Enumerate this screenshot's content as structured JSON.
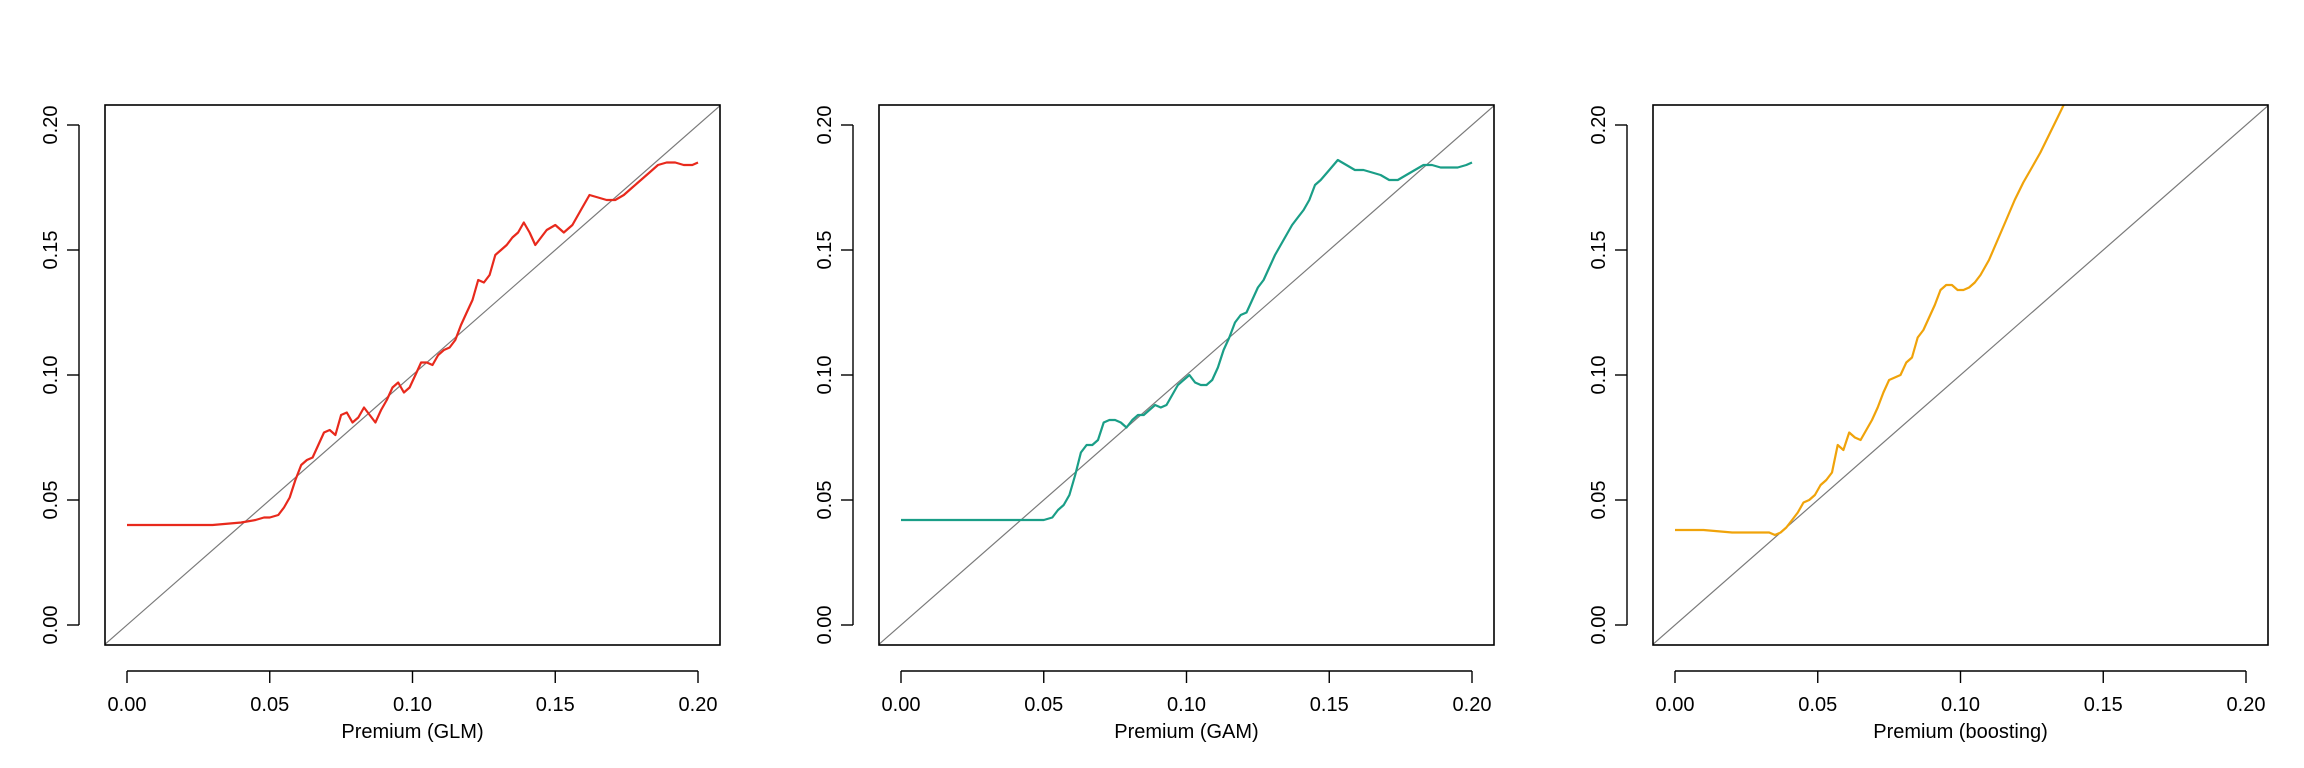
{
  "chart_data": [
    {
      "type": "line",
      "xlabel": "Premium (GLM)",
      "ylabel": "",
      "xlim": [
        0.0,
        0.2
      ],
      "ylim": [
        0.0,
        0.2
      ],
      "xticks": [
        "0.00",
        "0.05",
        "0.10",
        "0.15",
        "0.20"
      ],
      "yticks": [
        "0.00",
        "0.05",
        "0.10",
        "0.15",
        "0.20"
      ],
      "grid": false,
      "reference_line": "y = x",
      "series": [
        {
          "color": "#e8291c",
          "x": [
            0.0,
            0.01,
            0.02,
            0.03,
            0.04,
            0.045,
            0.048,
            0.05,
            0.053,
            0.055,
            0.057,
            0.059,
            0.061,
            0.063,
            0.065,
            0.067,
            0.069,
            0.071,
            0.073,
            0.075,
            0.077,
            0.079,
            0.081,
            0.083,
            0.085,
            0.087,
            0.089,
            0.091,
            0.093,
            0.095,
            0.097,
            0.099,
            0.101,
            0.103,
            0.105,
            0.107,
            0.109,
            0.111,
            0.113,
            0.115,
            0.117,
            0.119,
            0.121,
            0.123,
            0.125,
            0.127,
            0.129,
            0.131,
            0.133,
            0.135,
            0.137,
            0.139,
            0.141,
            0.143,
            0.145,
            0.147,
            0.15,
            0.153,
            0.156,
            0.159,
            0.162,
            0.165,
            0.168,
            0.171,
            0.174,
            0.177,
            0.18,
            0.183,
            0.186,
            0.189,
            0.192,
            0.195,
            0.198,
            0.2
          ],
          "y": [
            0.04,
            0.04,
            0.04,
            0.04,
            0.041,
            0.042,
            0.043,
            0.043,
            0.044,
            0.047,
            0.051,
            0.058,
            0.064,
            0.066,
            0.067,
            0.072,
            0.077,
            0.078,
            0.076,
            0.084,
            0.085,
            0.081,
            0.083,
            0.087,
            0.084,
            0.081,
            0.086,
            0.09,
            0.095,
            0.097,
            0.093,
            0.095,
            0.1,
            0.105,
            0.105,
            0.104,
            0.108,
            0.11,
            0.111,
            0.114,
            0.12,
            0.125,
            0.13,
            0.138,
            0.137,
            0.14,
            0.148,
            0.15,
            0.152,
            0.155,
            0.157,
            0.161,
            0.157,
            0.152,
            0.155,
            0.158,
            0.16,
            0.157,
            0.16,
            0.166,
            0.172,
            0.171,
            0.17,
            0.17,
            0.172,
            0.175,
            0.178,
            0.181,
            0.184,
            0.185,
            0.185,
            0.184,
            0.184,
            0.185
          ]
        }
      ]
    },
    {
      "type": "line",
      "xlabel": "Premium (GAM)",
      "ylabel": "",
      "xlim": [
        0.0,
        0.2
      ],
      "ylim": [
        0.0,
        0.2
      ],
      "xticks": [
        "0.00",
        "0.05",
        "0.10",
        "0.15",
        "0.20"
      ],
      "yticks": [
        "0.00",
        "0.05",
        "0.10",
        "0.15",
        "0.20"
      ],
      "grid": false,
      "reference_line": "y = x",
      "series": [
        {
          "color": "#1a9e87",
          "x": [
            0.0,
            0.01,
            0.02,
            0.03,
            0.04,
            0.045,
            0.048,
            0.05,
            0.053,
            0.055,
            0.057,
            0.059,
            0.061,
            0.063,
            0.065,
            0.067,
            0.069,
            0.071,
            0.073,
            0.075,
            0.077,
            0.079,
            0.081,
            0.083,
            0.085,
            0.087,
            0.089,
            0.091,
            0.093,
            0.095,
            0.097,
            0.099,
            0.101,
            0.103,
            0.105,
            0.107,
            0.109,
            0.111,
            0.113,
            0.115,
            0.117,
            0.119,
            0.121,
            0.123,
            0.125,
            0.127,
            0.129,
            0.131,
            0.133,
            0.135,
            0.137,
            0.139,
            0.141,
            0.143,
            0.145,
            0.147,
            0.15,
            0.153,
            0.156,
            0.159,
            0.162,
            0.165,
            0.168,
            0.171,
            0.174,
            0.177,
            0.18,
            0.183,
            0.186,
            0.189,
            0.192,
            0.195,
            0.198,
            0.2
          ],
          "y": [
            0.042,
            0.042,
            0.042,
            0.042,
            0.042,
            0.042,
            0.042,
            0.042,
            0.043,
            0.046,
            0.048,
            0.052,
            0.06,
            0.069,
            0.072,
            0.072,
            0.074,
            0.081,
            0.082,
            0.082,
            0.081,
            0.079,
            0.082,
            0.084,
            0.084,
            0.086,
            0.088,
            0.087,
            0.088,
            0.092,
            0.096,
            0.098,
            0.1,
            0.097,
            0.096,
            0.096,
            0.098,
            0.103,
            0.11,
            0.115,
            0.121,
            0.124,
            0.125,
            0.13,
            0.135,
            0.138,
            0.143,
            0.148,
            0.152,
            0.156,
            0.16,
            0.163,
            0.166,
            0.17,
            0.176,
            0.178,
            0.182,
            0.186,
            0.184,
            0.182,
            0.182,
            0.181,
            0.18,
            0.178,
            0.178,
            0.18,
            0.182,
            0.184,
            0.184,
            0.183,
            0.183,
            0.183,
            0.184,
            0.185
          ]
        }
      ]
    },
    {
      "type": "line",
      "xlabel": "Premium (boosting)",
      "ylabel": "",
      "xlim": [
        0.0,
        0.2
      ],
      "ylim": [
        0.0,
        0.2
      ],
      "xticks": [
        "0.00",
        "0.05",
        "0.10",
        "0.15",
        "0.20"
      ],
      "yticks": [
        "0.00",
        "0.05",
        "0.10",
        "0.15",
        "0.20"
      ],
      "grid": false,
      "reference_line": "y = x",
      "series": [
        {
          "color": "#f0a30a",
          "x": [
            0.0,
            0.01,
            0.02,
            0.025,
            0.03,
            0.033,
            0.035,
            0.037,
            0.039,
            0.041,
            0.043,
            0.045,
            0.047,
            0.049,
            0.051,
            0.053,
            0.055,
            0.057,
            0.059,
            0.061,
            0.063,
            0.065,
            0.067,
            0.069,
            0.071,
            0.073,
            0.075,
            0.077,
            0.079,
            0.081,
            0.083,
            0.085,
            0.087,
            0.089,
            0.091,
            0.093,
            0.095,
            0.097,
            0.099,
            0.101,
            0.103,
            0.105,
            0.107,
            0.11,
            0.113,
            0.116,
            0.119,
            0.122,
            0.125,
            0.128,
            0.131,
            0.134,
            0.137,
            0.139,
            0.14
          ],
          "y": [
            0.038,
            0.038,
            0.037,
            0.037,
            0.037,
            0.037,
            0.036,
            0.037,
            0.039,
            0.042,
            0.045,
            0.049,
            0.05,
            0.052,
            0.056,
            0.058,
            0.061,
            0.072,
            0.07,
            0.077,
            0.075,
            0.074,
            0.078,
            0.082,
            0.087,
            0.093,
            0.098,
            0.099,
            0.1,
            0.105,
            0.107,
            0.115,
            0.118,
            0.123,
            0.128,
            0.134,
            0.136,
            0.136,
            0.134,
            0.134,
            0.135,
            0.137,
            0.14,
            0.146,
            0.154,
            0.162,
            0.17,
            0.177,
            0.183,
            0.189,
            0.196,
            0.203,
            0.21,
            0.214,
            0.216
          ]
        }
      ]
    }
  ]
}
